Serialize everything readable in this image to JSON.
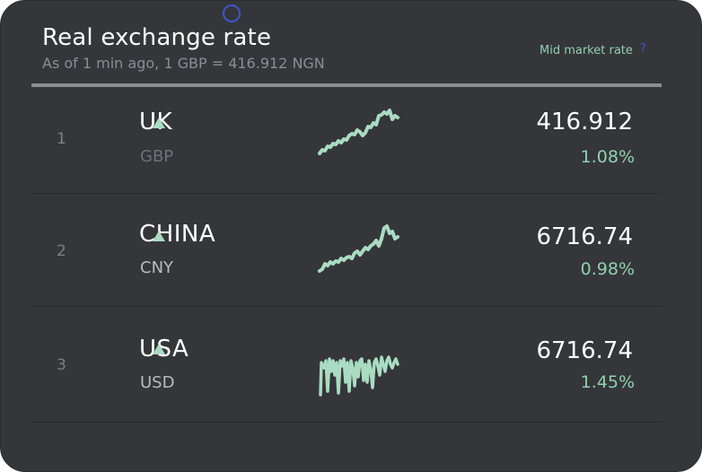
{
  "header": {
    "title": "Real exchange rate",
    "subtitle": "As of 1 min ago, 1 GBP = 416.912 NGN",
    "mid_market_label": "Mid market rate",
    "help_glyph": "?"
  },
  "rows": [
    {
      "rank": "1",
      "country": "UK",
      "code": "GBP",
      "rate": "416.912",
      "change": "1.08%",
      "trend_icon": "up-triangle-icon"
    },
    {
      "rank": "2",
      "country": "CHINA",
      "code": "CNY",
      "rate": "6716.74",
      "change": "0.98%",
      "trend_icon": "up-triangle-icon"
    },
    {
      "rank": "3",
      "country": "USA",
      "code": "USD",
      "rate": "6716.74",
      "change": "1.45%",
      "trend_icon": "up-triangle-icon"
    }
  ],
  "colors": {
    "background": "#35363a",
    "accent_green": "#8fd1ae",
    "text_primary": "#ffffff",
    "text_muted": "#8b8d92",
    "link_blue": "#3d56c9"
  }
}
